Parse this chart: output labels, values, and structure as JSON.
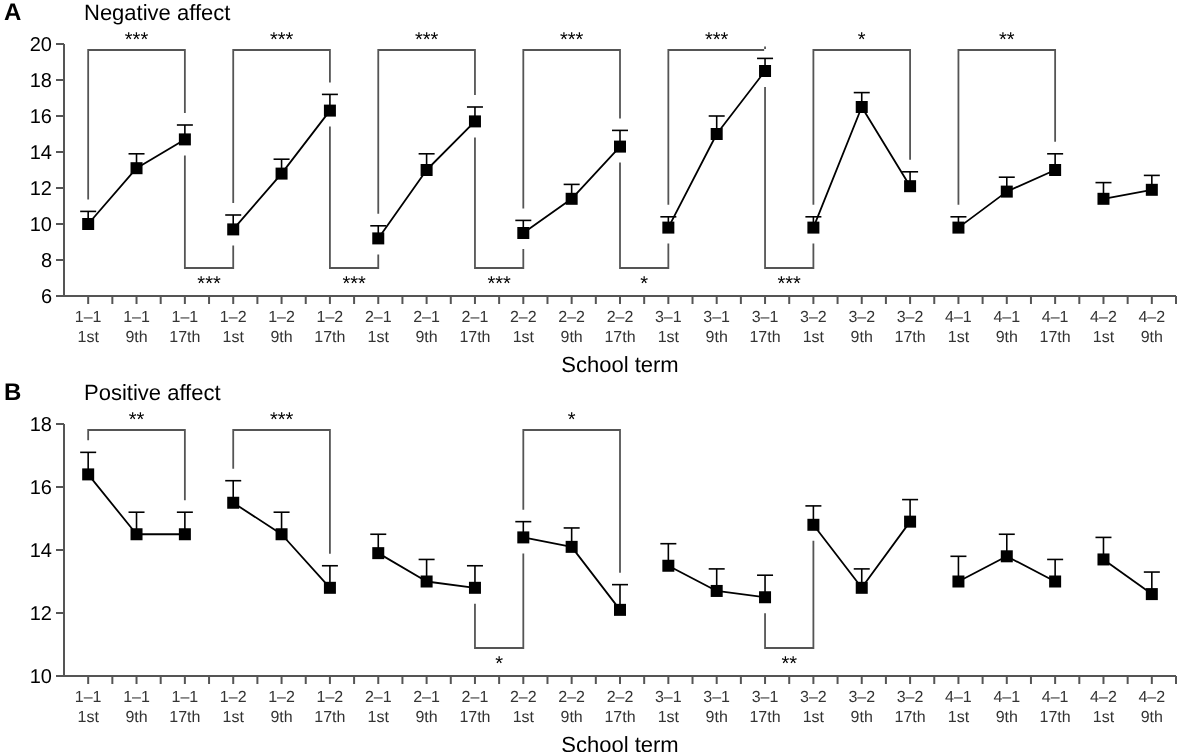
{
  "chart_data": [
    {
      "type": "line",
      "title": "Negative affect",
      "xlabel": "School term",
      "marker": "square",
      "line_style": "solid",
      "grid": false,
      "categories": [
        "1–1 1st",
        "1–1 9th",
        "1–1 17th",
        "1–2 1st",
        "1–2 9th",
        "1–2 17th",
        "2–1 1st",
        "2–1 9th",
        "2–1 17th",
        "2–2 1st",
        "2–2 9th",
        "2–2 17th",
        "3–1 1st",
        "3–1 9th",
        "3–1 17th",
        "3–2 1st",
        "3–2 9th",
        "3–2 17th",
        "4–1 1st",
        "4–1 9th",
        "4–1 17th",
        "4–2 1st",
        "4–2 9th"
      ],
      "ylim": [
        6,
        20
      ],
      "yticks": [
        6,
        8,
        10,
        12,
        14,
        16,
        18,
        20
      ],
      "annotations": [
        "A",
        "***",
        "***",
        "***",
        "***",
        "***",
        "*",
        "**",
        "***",
        "***",
        "***",
        "*",
        "***"
      ],
      "series": [
        {
          "color": "#000000",
          "values": [
            10.0,
            13.1,
            14.7,
            null,
            null,
            null,
            null,
            null,
            null,
            null,
            null,
            null,
            null,
            null,
            null,
            null,
            null,
            null,
            null,
            null,
            null,
            null,
            null
          ],
          "errors": [
            [
              10.0,
              10.7
            ],
            [
              13.1,
              13.9
            ],
            [
              14.7,
              15.5
            ],
            null,
            null,
            null,
            null,
            null,
            null,
            null,
            null,
            null,
            null,
            null,
            null,
            null,
            null,
            null,
            null,
            null,
            null,
            null,
            null
          ]
        },
        {
          "color": "#000000",
          "values": [
            null,
            null,
            null,
            9.7,
            12.8,
            16.3,
            null,
            null,
            null,
            null,
            null,
            null,
            null,
            null,
            null,
            null,
            null,
            null,
            null,
            null,
            null,
            null,
            null
          ],
          "errors": [
            null,
            null,
            null,
            [
              9.7,
              10.5
            ],
            [
              12.8,
              13.6
            ],
            [
              16.3,
              17.2
            ],
            null,
            null,
            null,
            null,
            null,
            null,
            null,
            null,
            null,
            null,
            null,
            null,
            null,
            null,
            null,
            null,
            null
          ]
        },
        {
          "color": "#000000",
          "values": [
            null,
            null,
            null,
            null,
            null,
            null,
            9.2,
            13.0,
            15.7,
            null,
            null,
            null,
            null,
            null,
            null,
            null,
            null,
            null,
            null,
            null,
            null,
            null,
            null
          ],
          "errors": [
            null,
            null,
            null,
            null,
            null,
            null,
            [
              9.2,
              9.9
            ],
            [
              13.0,
              13.9
            ],
            [
              15.7,
              16.5
            ],
            null,
            null,
            null,
            null,
            null,
            null,
            null,
            null,
            null,
            null,
            null,
            null,
            null,
            null
          ]
        },
        {
          "color": "#000000",
          "values": [
            null,
            null,
            null,
            null,
            null,
            null,
            null,
            null,
            null,
            9.5,
            11.4,
            14.3,
            null,
            null,
            null,
            null,
            null,
            null,
            null,
            null,
            null,
            null,
            null
          ],
          "errors": [
            null,
            null,
            null,
            null,
            null,
            null,
            null,
            null,
            null,
            [
              9.5,
              10.2
            ],
            [
              11.4,
              12.2
            ],
            [
              14.3,
              15.2
            ],
            null,
            null,
            null,
            null,
            null,
            null,
            null,
            null,
            null,
            null,
            null
          ]
        },
        {
          "color": "#000000",
          "values": [
            null,
            null,
            null,
            null,
            null,
            null,
            null,
            null,
            null,
            null,
            null,
            null,
            9.8,
            15.0,
            18.5,
            null,
            null,
            null,
            null,
            null,
            null,
            null,
            null
          ],
          "errors": [
            null,
            null,
            null,
            null,
            null,
            null,
            null,
            null,
            null,
            null,
            null,
            null,
            [
              9.8,
              10.4
            ],
            [
              15.0,
              16.0
            ],
            [
              18.5,
              19.2
            ],
            null,
            null,
            null,
            null,
            null,
            null,
            null,
            null
          ]
        },
        {
          "color": "#000000",
          "values": [
            null,
            null,
            null,
            null,
            null,
            null,
            null,
            null,
            null,
            null,
            null,
            null,
            null,
            null,
            null,
            9.8,
            16.5,
            12.1,
            null,
            null,
            null,
            null,
            null
          ],
          "errors": [
            null,
            null,
            null,
            null,
            null,
            null,
            null,
            null,
            null,
            null,
            null,
            null,
            null,
            null,
            null,
            [
              9.8,
              10.4
            ],
            [
              16.5,
              17.3
            ],
            [
              12.1,
              12.9
            ],
            null,
            null,
            null,
            null,
            null
          ]
        },
        {
          "color": "#000000",
          "values": [
            null,
            null,
            null,
            null,
            null,
            null,
            null,
            null,
            null,
            null,
            null,
            null,
            null,
            null,
            null,
            null,
            null,
            null,
            9.8,
            11.8,
            13.0,
            null,
            null
          ],
          "errors": [
            null,
            null,
            null,
            null,
            null,
            null,
            null,
            null,
            null,
            null,
            null,
            null,
            null,
            null,
            null,
            null,
            null,
            null,
            [
              9.8,
              10.4
            ],
            [
              11.8,
              12.6
            ],
            [
              13.0,
              13.9
            ],
            null,
            null
          ]
        },
        {
          "color": "#000000",
          "values": [
            null,
            null,
            null,
            null,
            null,
            null,
            null,
            null,
            null,
            null,
            null,
            null,
            null,
            null,
            null,
            null,
            null,
            null,
            null,
            null,
            null,
            11.4,
            11.9
          ],
          "errors": [
            null,
            null,
            null,
            null,
            null,
            null,
            null,
            null,
            null,
            null,
            null,
            null,
            null,
            null,
            null,
            null,
            null,
            null,
            null,
            null,
            null,
            [
              11.4,
              12.3
            ],
            [
              11.9,
              12.7
            ]
          ]
        }
      ]
    },
    {
      "type": "line",
      "title": "Positive affect",
      "xlabel": "School term",
      "marker": "square",
      "line_style": "solid",
      "grid": false,
      "categories": [
        "1–1 1st",
        "1–1 9th",
        "1–1 17th",
        "1–2 1st",
        "1–2 9th",
        "1–2 17th",
        "2–1 1st",
        "2–1 9th",
        "2–1 17th",
        "2–2 1st",
        "2–2 9th",
        "2–2 17th",
        "3–1 1st",
        "3–1 9th",
        "3–1 17th",
        "3–2 1st",
        "3–2 9th",
        "3–2 17th",
        "4–1 1st",
        "4–1 9th",
        "4–1 17th",
        "4–2 1st",
        "4–2 9th"
      ],
      "ylim": [
        10,
        18
      ],
      "yticks": [
        10,
        12,
        14,
        16,
        18
      ],
      "annotations": [
        "B",
        "**",
        "***",
        "*",
        "*",
        "**"
      ],
      "series": [
        {
          "color": "#000000",
          "values": [
            16.4,
            14.5,
            14.5,
            null,
            null,
            null,
            null,
            null,
            null,
            null,
            null,
            null,
            null,
            null,
            null,
            null,
            null,
            null,
            null,
            null,
            null,
            null,
            null
          ],
          "errors": [
            [
              16.4,
              17.1
            ],
            [
              14.5,
              15.2
            ],
            [
              14.5,
              15.2
            ],
            null,
            null,
            null,
            null,
            null,
            null,
            null,
            null,
            null,
            null,
            null,
            null,
            null,
            null,
            null,
            null,
            null,
            null,
            null,
            null
          ]
        },
        {
          "color": "#000000",
          "values": [
            null,
            null,
            null,
            15.5,
            14.5,
            12.8,
            null,
            null,
            null,
            null,
            null,
            null,
            null,
            null,
            null,
            null,
            null,
            null,
            null,
            null,
            null,
            null,
            null
          ],
          "errors": [
            null,
            null,
            null,
            [
              15.5,
              16.2
            ],
            [
              14.5,
              15.2
            ],
            [
              12.8,
              13.5
            ],
            null,
            null,
            null,
            null,
            null,
            null,
            null,
            null,
            null,
            null,
            null,
            null,
            null,
            null,
            null,
            null,
            null
          ]
        },
        {
          "color": "#000000",
          "values": [
            null,
            null,
            null,
            null,
            null,
            null,
            13.9,
            13.0,
            12.8,
            null,
            null,
            null,
            null,
            null,
            null,
            null,
            null,
            null,
            null,
            null,
            null,
            null,
            null
          ],
          "errors": [
            null,
            null,
            null,
            null,
            null,
            null,
            [
              13.9,
              14.5
            ],
            [
              13.0,
              13.7
            ],
            [
              12.8,
              13.5
            ],
            null,
            null,
            null,
            null,
            null,
            null,
            null,
            null,
            null,
            null,
            null,
            null,
            null,
            null
          ]
        },
        {
          "color": "#000000",
          "values": [
            null,
            null,
            null,
            null,
            null,
            null,
            null,
            null,
            null,
            14.4,
            14.1,
            12.1,
            null,
            null,
            null,
            null,
            null,
            null,
            null,
            null,
            null,
            null,
            null
          ],
          "errors": [
            null,
            null,
            null,
            null,
            null,
            null,
            null,
            null,
            null,
            [
              14.4,
              14.9
            ],
            [
              14.1,
              14.7
            ],
            [
              12.1,
              12.9
            ],
            null,
            null,
            null,
            null,
            null,
            null,
            null,
            null,
            null,
            null,
            null
          ]
        },
        {
          "color": "#000000",
          "values": [
            null,
            null,
            null,
            null,
            null,
            null,
            null,
            null,
            null,
            null,
            null,
            null,
            13.5,
            12.7,
            12.5,
            null,
            null,
            null,
            null,
            null,
            null,
            null,
            null
          ],
          "errors": [
            null,
            null,
            null,
            null,
            null,
            null,
            null,
            null,
            null,
            null,
            null,
            null,
            [
              13.5,
              14.2
            ],
            [
              12.7,
              13.4
            ],
            [
              12.5,
              13.2
            ],
            null,
            null,
            null,
            null,
            null,
            null,
            null,
            null
          ]
        },
        {
          "color": "#000000",
          "values": [
            null,
            null,
            null,
            null,
            null,
            null,
            null,
            null,
            null,
            null,
            null,
            null,
            null,
            null,
            null,
            14.8,
            12.8,
            14.9,
            null,
            null,
            null,
            null,
            null
          ],
          "errors": [
            null,
            null,
            null,
            null,
            null,
            null,
            null,
            null,
            null,
            null,
            null,
            null,
            null,
            null,
            null,
            [
              14.8,
              15.4
            ],
            [
              12.8,
              13.4
            ],
            [
              14.9,
              15.6
            ],
            null,
            null,
            null,
            null,
            null
          ]
        },
        {
          "color": "#000000",
          "values": [
            null,
            null,
            null,
            null,
            null,
            null,
            null,
            null,
            null,
            null,
            null,
            null,
            null,
            null,
            null,
            null,
            null,
            null,
            13.0,
            13.8,
            13.0,
            null,
            null
          ],
          "errors": [
            null,
            null,
            null,
            null,
            null,
            null,
            null,
            null,
            null,
            null,
            null,
            null,
            null,
            null,
            null,
            null,
            null,
            null,
            [
              13.0,
              13.8
            ],
            [
              13.8,
              14.5
            ],
            [
              13.0,
              13.7
            ],
            null,
            null
          ]
        },
        {
          "color": "#000000",
          "values": [
            null,
            null,
            null,
            null,
            null,
            null,
            null,
            null,
            null,
            null,
            null,
            null,
            null,
            null,
            null,
            null,
            null,
            null,
            null,
            null,
            null,
            13.7,
            12.6
          ],
          "errors": [
            null,
            null,
            null,
            null,
            null,
            null,
            null,
            null,
            null,
            null,
            null,
            null,
            null,
            null,
            null,
            null,
            null,
            null,
            null,
            null,
            null,
            [
              13.7,
              14.4
            ],
            [
              12.6,
              13.3
            ]
          ]
        }
      ]
    }
  ]
}
